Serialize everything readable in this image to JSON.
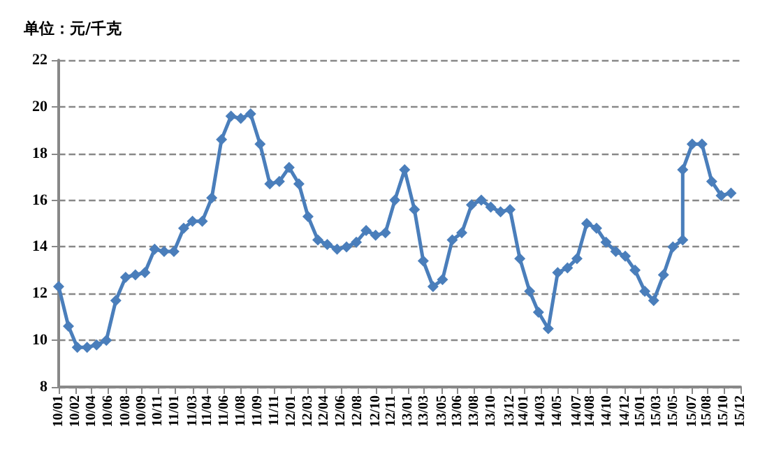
{
  "chart_data": {
    "type": "line",
    "title": "单位：元/千克",
    "color": "#4a7ebb",
    "marker": "diamond",
    "line_style": "solid",
    "grid": "y",
    "x": [
      "2010-01",
      "2010-02",
      "2010-03",
      "2010-04",
      "2010-05",
      "2010-06",
      "2010-07",
      "2010-08",
      "2010-09",
      "2010-10",
      "2010-11",
      "2010-12",
      "2011-01",
      "2011-02",
      "2011-03",
      "2011-04",
      "2011-05",
      "2011-06",
      "2011-07",
      "2011-08",
      "2011-09",
      "2011-10",
      "2011-11",
      "2011-12",
      "2012-01",
      "2012-02",
      "2012-03",
      "2012-04",
      "2012-05",
      "2012-06",
      "2012-07",
      "2012-08",
      "2012-09",
      "2012-10",
      "2012-11",
      "2012-12",
      "2013-01",
      "2013-02",
      "2013-03",
      "2013-04",
      "2013-05",
      "2013-06",
      "2013-07",
      "2013-08",
      "2013-09",
      "2013-10",
      "2013-11",
      "2013-12",
      "2014-01",
      "2014-02",
      "2014-03",
      "2014-04",
      "2014-05",
      "2014-06",
      "2014-07",
      "2014-08",
      "2014-09",
      "2014-10",
      "2014-11",
      "2014-12",
      "2015-01",
      "2015-02",
      "2015-03",
      "2015-04",
      "2015-05",
      "2015-06",
      "2015-06",
      "2015-07",
      "2015-08",
      "2015-09",
      "2015-10",
      "2015-11"
    ],
    "values": [
      12.3,
      10.6,
      9.7,
      9.7,
      9.8,
      10.0,
      11.7,
      12.7,
      12.8,
      12.9,
      13.9,
      13.8,
      13.8,
      14.8,
      15.1,
      15.1,
      16.1,
      18.6,
      19.6,
      19.5,
      19.7,
      18.4,
      16.7,
      16.8,
      17.4,
      16.7,
      15.3,
      14.3,
      14.1,
      13.9,
      14.0,
      14.2,
      14.7,
      14.5,
      14.6,
      16.0,
      17.3,
      15.6,
      13.4,
      12.3,
      12.6,
      14.3,
      14.6,
      15.8,
      16.0,
      15.7,
      15.5,
      15.6,
      13.5,
      12.1,
      11.2,
      10.5,
      12.9,
      13.1,
      13.5,
      15.0,
      14.8,
      14.2,
      13.8,
      13.6,
      13.0,
      12.1,
      11.7,
      12.8,
      14.0,
      14.3,
      17.3,
      18.4,
      18.4,
      16.8,
      16.2,
      16.3
    ],
    "ylim": [
      8,
      22
    ],
    "yticks": [
      8,
      10,
      12,
      14,
      16,
      18,
      20,
      22
    ],
    "xlim": [
      "2010-01",
      "2015-12"
    ],
    "xticks": [
      {
        "value": "2010-01-01",
        "label": "10/01"
      },
      {
        "value": "2010-02-23",
        "label": "10/02"
      },
      {
        "value": "2010-04-15",
        "label": "10/04"
      },
      {
        "value": "2010-06-07",
        "label": "10/06"
      },
      {
        "value": "2010-08-01",
        "label": "10/08"
      },
      {
        "value": "2010-09-21",
        "label": "10/09"
      },
      {
        "value": "2010-11-12",
        "label": "10/11"
      },
      {
        "value": "2011-01-04",
        "label": "11/01"
      },
      {
        "value": "2011-03-01",
        "label": "11/03"
      },
      {
        "value": "2011-04-18",
        "label": "11/04"
      },
      {
        "value": "2011-06-10",
        "label": "11/06"
      },
      {
        "value": "2011-08-02",
        "label": "11/08"
      },
      {
        "value": "2011-09-24",
        "label": "11/09"
      },
      {
        "value": "2011-11-16",
        "label": "11/11"
      },
      {
        "value": "2012-01-08",
        "label": "12/01"
      },
      {
        "value": "2012-03-01",
        "label": "12/03"
      },
      {
        "value": "2012-04-22",
        "label": "12/04"
      },
      {
        "value": "2012-06-14",
        "label": "12/06"
      },
      {
        "value": "2012-08-05",
        "label": "12/08"
      },
      {
        "value": "2012-10-01",
        "label": "12/10"
      },
      {
        "value": "2012-11-19",
        "label": "12/11"
      },
      {
        "value": "2013-01-11",
        "label": "13/01"
      },
      {
        "value": "2013-03-03",
        "label": "13/03"
      },
      {
        "value": "2013-05-01",
        "label": "13/05"
      },
      {
        "value": "2013-06-17",
        "label": "13/06"
      },
      {
        "value": "2013-08-09",
        "label": "13/08"
      },
      {
        "value": "2013-10-01",
        "label": "13/10"
      },
      {
        "value": "2013-12-01",
        "label": "13/12"
      },
      {
        "value": "2014-01-15",
        "label": "14/01"
      },
      {
        "value": "2014-03-07",
        "label": "14/03"
      },
      {
        "value": "2014-05-01",
        "label": "14/05"
      },
      {
        "value": "2014-07-01",
        "label": "14/07"
      },
      {
        "value": "2014-08-12",
        "label": "14/08"
      },
      {
        "value": "2014-10-04",
        "label": "14/10"
      },
      {
        "value": "2014-12-01",
        "label": "14/12"
      },
      {
        "value": "2015-01-18",
        "label": "15/01"
      },
      {
        "value": "2015-03-10",
        "label": "15/03"
      },
      {
        "value": "2015-05-02",
        "label": "15/05"
      },
      {
        "value": "2015-07-01",
        "label": "15/07"
      },
      {
        "value": "2015-08-16",
        "label": "15/08"
      },
      {
        "value": "2015-10-08",
        "label": "15/10"
      },
      {
        "value": "2015-12-01",
        "label": "15/12"
      }
    ]
  }
}
